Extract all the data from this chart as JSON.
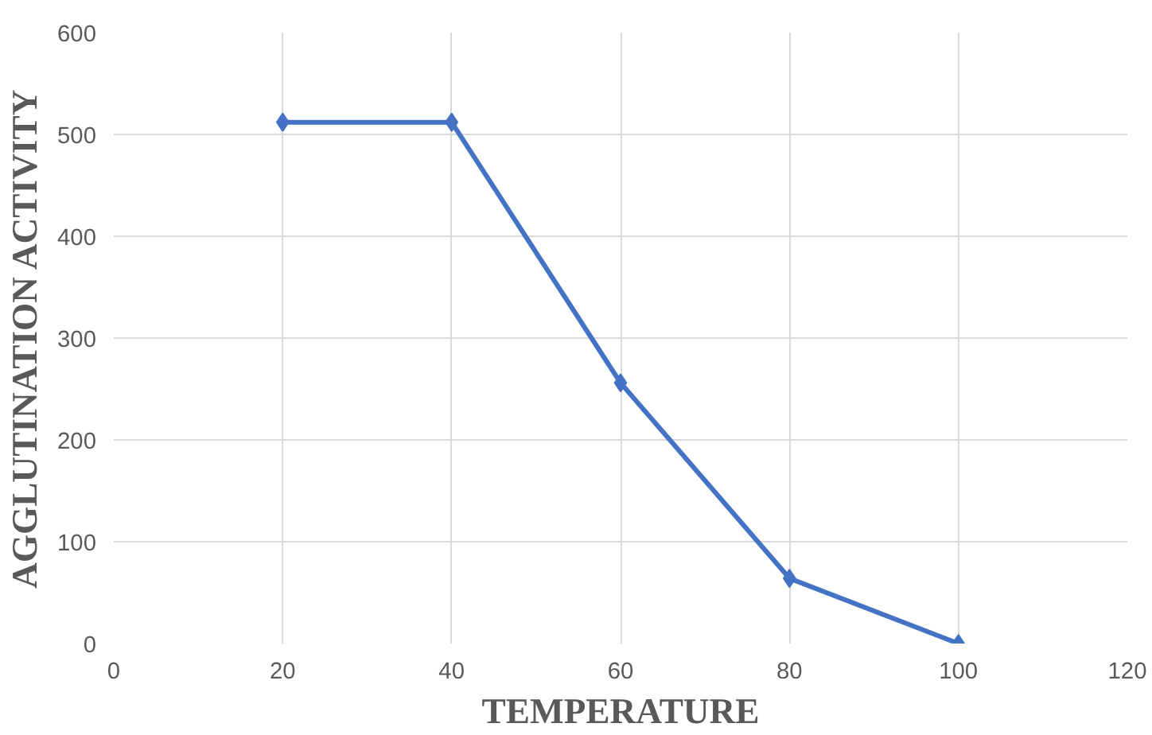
{
  "chart_data": {
    "type": "line",
    "xlabel": "TEMPERATURE",
    "ylabel": "AGGLUTINATION ACTIVITY",
    "x": [
      20,
      40,
      60,
      80,
      100
    ],
    "series": [
      {
        "color": "#4472c4",
        "values": [
          512,
          512,
          256,
          64,
          0
        ]
      }
    ],
    "xlim": [
      0,
      120
    ],
    "xticks": [
      0,
      20,
      40,
      60,
      80,
      100,
      120
    ],
    "ylim": [
      0,
      600
    ],
    "yticks": [
      0,
      100,
      200,
      300,
      400,
      500,
      600
    ],
    "grid": true,
    "marker": "diamond",
    "line_style": "solid"
  }
}
